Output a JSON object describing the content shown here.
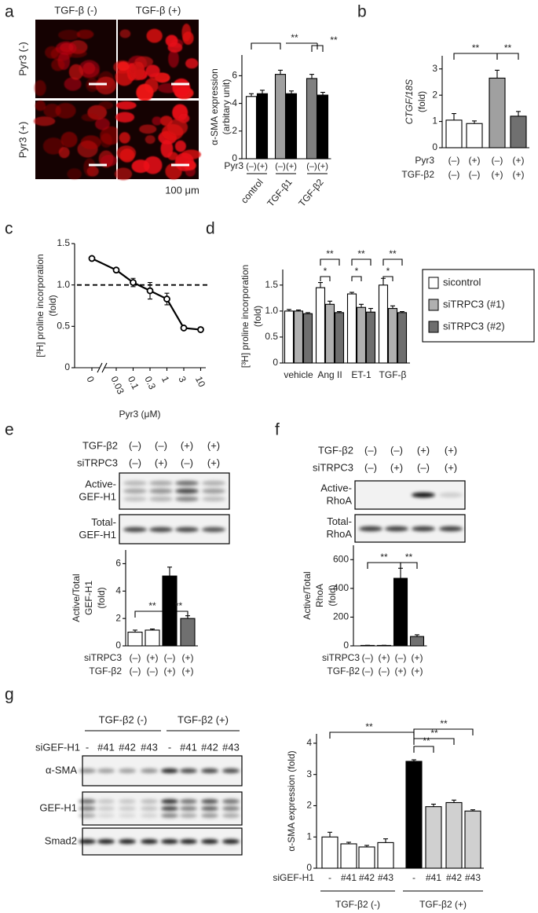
{
  "panel_a": {
    "label": "a",
    "columns": [
      "TGF-β (-)",
      "TGF-β (+)"
    ],
    "rows": [
      "Pyr3 (-)",
      "Pyr3 (+)"
    ],
    "scale_bar": "100 μm"
  },
  "panel_e_blot": {
    "label": "e",
    "conditions": [
      {
        "name": "TGF-β2",
        "labels": [
          "(–)",
          "(–)",
          "(+)",
          "(+)"
        ]
      },
      {
        "name": "siTRPC3",
        "labels": [
          "(–)",
          "(+)",
          "(–)",
          "(+)"
        ]
      }
    ],
    "bands": [
      [
        "Active-",
        "GEF-H1"
      ],
      [
        "Total-",
        "GEF-H1"
      ]
    ]
  },
  "panel_f_blot": {
    "label": "f",
    "conditions": [
      {
        "name": "TGF-β2",
        "labels": [
          "(–)",
          "(–)",
          "(+)",
          "(+)"
        ]
      },
      {
        "name": "siTRPC3",
        "labels": [
          "(–)",
          "(+)",
          "(–)",
          "(+)"
        ]
      }
    ],
    "bands": [
      [
        "Active-",
        "RhoA"
      ],
      [
        "Total-",
        "RhoA"
      ]
    ]
  },
  "panel_g_blot": {
    "label": "g",
    "groups": [
      "TGF-β2 (-)",
      "TGF-β2 (+)"
    ],
    "row_name": "siGEF-H1",
    "lanes": [
      "-",
      "#41",
      "#42",
      "#43",
      "-",
      "#41",
      "#42",
      "#43"
    ],
    "bands": [
      "α-SMA",
      "GEF-H1",
      "Smad2"
    ]
  },
  "chart_data": [
    {
      "type": "bar",
      "ylabel": [
        "α-SMA expression",
        "(arbitary unit)"
      ],
      "ylim": [
        0,
        7.5
      ],
      "yticks": [
        0,
        2,
        4,
        6
      ],
      "values": [
        4.5,
        4.7,
        6.1,
        4.7,
        5.8,
        4.6
      ],
      "errors": [
        0.2,
        0.25,
        0.3,
        0.2,
        0.3,
        0.2
      ],
      "colors": [
        "#ffffff",
        "#000000",
        "#a0a0a0",
        "#000000",
        "#808080",
        "#000000"
      ],
      "rows": [
        {
          "name": "Pyr3",
          "labels": [
            "(–)",
            "(+)",
            "(–)",
            "(+)",
            "(–)",
            "(+)"
          ]
        }
      ],
      "groups": [
        "control",
        "TGF-β1",
        "TGF-β2"
      ],
      "annotations": [
        "**",
        "**"
      ]
    },
    {
      "type": "bar",
      "label": "b",
      "ylabel": [
        "CTGF/18S",
        "(fold)"
      ],
      "ylim": [
        0,
        3.5
      ],
      "yticks": [
        0,
        1,
        2,
        3
      ],
      "values": [
        1.05,
        0.92,
        2.65,
        1.2
      ],
      "errors": [
        0.25,
        0.1,
        0.3,
        0.18
      ],
      "colors": [
        "#ffffff",
        "#ffffff",
        "#a0a0a0",
        "#707070"
      ],
      "rows": [
        {
          "name": "Pyr3",
          "labels": [
            "(–)",
            "(+)",
            "(–)",
            "(+)"
          ]
        },
        {
          "name": "TGF-β2",
          "labels": [
            "(–)",
            "(–)",
            "(+)",
            "(+)"
          ]
        }
      ],
      "annotations": [
        "**",
        "**"
      ]
    },
    {
      "type": "line",
      "label": "c",
      "ylabel": [
        "[³H] proline incorporation",
        "(fold)"
      ],
      "xlabel": "Pyr3 (μM)",
      "categories": [
        "0",
        "0.03",
        "0.1",
        "0.3",
        "1",
        "3",
        "10"
      ],
      "values": [
        1.32,
        1.18,
        1.03,
        0.93,
        0.83,
        0.48,
        0.46
      ],
      "errors": [
        0.02,
        0.02,
        0.05,
        0.1,
        0.07,
        0.01,
        0.01
      ],
      "reference": 1,
      "ylim": [
        0,
        1.5
      ],
      "yticks": [
        0,
        0.5,
        {
          "value": 1,
          "label": "1.0"
        },
        1.5
      ]
    },
    {
      "type": "grouped_bar",
      "label": "d",
      "ylabel": [
        "[³H] proline incorporation",
        "(fold)"
      ],
      "categories": [
        "vehicle",
        "Ang II",
        "ET-1",
        "TGF-β"
      ],
      "series": [
        {
          "name": "sicontrol",
          "color": "#ffffff",
          "values": [
            1.0,
            1.45,
            1.33,
            1.5
          ],
          "errors": [
            0.03,
            0.1,
            0.03,
            0.13
          ]
        },
        {
          "name": "siTRPC3 (#1)",
          "color": "#b0b0b0",
          "values": [
            1.0,
            1.13,
            1.07,
            1.05
          ],
          "errors": [
            0.02,
            0.06,
            0.06,
            0.05
          ]
        },
        {
          "name": "siTRPC3 (#2)",
          "color": "#6e6e6e",
          "values": [
            0.95,
            0.97,
            0.98,
            0.97
          ],
          "errors": [
            0.02,
            0.02,
            0.07,
            0.02
          ]
        }
      ],
      "ylim": [
        0,
        1.8
      ],
      "yticks": [
        0,
        0.5,
        {
          "value": 1,
          "label": "1.0"
        },
        1.5
      ],
      "legend": "right",
      "annotations": [
        "**",
        "*",
        "**",
        "*",
        "**",
        "*"
      ]
    },
    {
      "type": "bar",
      "ylabel": [
        "Active/Total",
        "GEF-H1",
        "(fold)"
      ],
      "ylim": [
        0,
        7
      ],
      "yticks": [
        0,
        2,
        4,
        6
      ],
      "values": [
        1.0,
        1.15,
        5.1,
        2.0
      ],
      "errors": [
        0.15,
        0.08,
        0.65,
        0.2
      ],
      "colors": [
        "#ffffff",
        "#ffffff",
        "#000000",
        "#707070"
      ],
      "rows": [
        {
          "name": "siTRPC3",
          "labels": [
            "(–)",
            "(+)",
            "(–)",
            "(+)"
          ]
        },
        {
          "name": "TGF-β2",
          "labels": [
            "(–)",
            "(–)",
            "(+)",
            "(+)"
          ]
        }
      ],
      "annotations": [
        "**",
        "**"
      ]
    },
    {
      "type": "bar",
      "ylabel": [
        "Active/Total",
        "RhoA",
        "(fold)"
      ],
      "ylim": [
        0,
        700
      ],
      "yticks": [
        0,
        200,
        400,
        600
      ],
      "values": [
        3,
        3,
        470,
        65
      ],
      "errors": [
        1,
        1,
        70,
        12
      ],
      "colors": [
        "#ffffff",
        "#ffffff",
        "#000000",
        "#707070"
      ],
      "rows": [
        {
          "name": "siTRPC3",
          "labels": [
            "(–)",
            "(+)",
            "(–)",
            "(+)"
          ]
        },
        {
          "name": "TGF-β2",
          "labels": [
            "(–)",
            "(–)",
            "(+)",
            "(+)"
          ]
        }
      ],
      "annotations": [
        "**",
        "**"
      ]
    },
    {
      "type": "bar",
      "ylabel": [
        "α-SMA expression (fold)"
      ],
      "ylim": [
        0,
        4.3
      ],
      "yticks": [
        0,
        1,
        2,
        3,
        4
      ],
      "values": [
        1.0,
        0.78,
        0.68,
        0.82,
        3.42,
        1.97,
        2.1,
        1.83
      ],
      "errors": [
        0.15,
        0.05,
        0.05,
        0.12,
        0.05,
        0.08,
        0.08,
        0.04
      ],
      "colors": [
        "#ffffff",
        "#ffffff",
        "#ffffff",
        "#ffffff",
        "#000000",
        "#d0d0d0",
        "#d0d0d0",
        "#d0d0d0"
      ],
      "rows": [
        {
          "name": "siGEF-H1",
          "labels": [
            "-",
            "#41",
            "#42",
            "#43",
            "-",
            "#41",
            "#42",
            "#43"
          ]
        }
      ],
      "groups": [
        "TGF-β2 (-)",
        "TGF-β2 (+)"
      ],
      "annotations": [
        "**",
        "**",
        "**",
        "**"
      ]
    }
  ]
}
